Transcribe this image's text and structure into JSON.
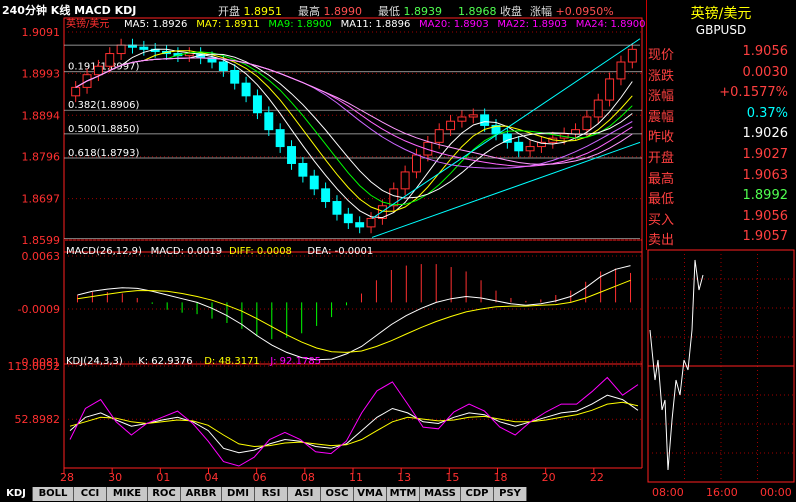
{
  "title": "240分钟 K线 MACD KDJ",
  "ohlc": {
    "open_label": "开盘",
    "open": "1.8951",
    "high_label": "最高",
    "high": "1.8990",
    "low_label": "最低",
    "low": "1.8939",
    "close_label": "收盘",
    "close": "1.8968",
    "chg_label": "涨幅",
    "chg": "+0.0950%"
  },
  "side": {
    "name": "英镑/美元",
    "code": "GBPUSD",
    "rows": [
      {
        "k": "现价",
        "v": "1.9056",
        "c": "#ff4040"
      },
      {
        "k": "涨跌",
        "v": "0.0030",
        "c": "#ff4040"
      },
      {
        "k": "涨幅",
        "v": "+0.1577%",
        "c": "#ff4040"
      },
      {
        "k": "震幅",
        "v": "0.37%",
        "c": "#00ffff"
      },
      {
        "k": "昨收",
        "v": "1.9026",
        "c": "#ffffff"
      },
      {
        "k": "开盘",
        "v": "1.9027",
        "c": "#ff4040"
      },
      {
        "k": "最高",
        "v": "1.9063",
        "c": "#ff4040"
      },
      {
        "k": "最低",
        "v": "1.8992",
        "c": "#50ff50"
      },
      {
        "k": "买入",
        "v": "1.9056",
        "c": "#ff4040"
      },
      {
        "k": "卖出",
        "v": "1.9057",
        "c": "#ff4040"
      }
    ]
  },
  "mini_chart": {
    "xlabels": [
      "08:00",
      "16:00",
      "00:00"
    ]
  },
  "tabs": [
    "KDJ",
    "BOLL",
    "CCI",
    "MIKE",
    "ROC",
    "ARBR",
    "DMI",
    "RSI",
    "ASI",
    "OSC",
    "VMA",
    "MTM",
    "MASS",
    "CDP",
    "PSY"
  ],
  "active_tab": "KDJ",
  "colors": {
    "up": "#ff3030",
    "down": "#00ffff",
    "ma5": "#ffffff",
    "ma7": "#ffff00",
    "ma9": "#ff00ff",
    "ma11": "#00ff00",
    "ma20": "#cc66ff",
    "ma22": "#ff66ff",
    "ma24": "#ff99ff",
    "grid": "#a00000",
    "axis": "#ff2020",
    "channel": "#00ffff"
  },
  "chart_data": [
    {
      "type": "candlestick",
      "name": "英镑/美元",
      "ylim": [
        1.8599,
        1.9091
      ],
      "yticks": [
        "1.9091",
        "1.8993",
        "1.8894",
        "1.8796",
        "1.8697",
        "1.8599"
      ],
      "xticks": [
        "28",
        "30",
        "01",
        "04",
        "06",
        "08",
        "11",
        "13",
        "15",
        "18",
        "20",
        "22"
      ],
      "ma_legend": [
        {
          "label": "MA5: 1.8926",
          "color": "#ffffff"
        },
        {
          "label": "MA7: 1.8911",
          "color": "#ffff00"
        },
        {
          "label": "MA9: 1.8900",
          "color": "#00ff00"
        },
        {
          "label": "MA11: 1.8896",
          "color": "#ffffff"
        },
        {
          "label": "MA20: 1.8903",
          "color": "#ff00ff"
        },
        {
          "label": "MA22: 1.8903",
          "color": "#ff00ff"
        },
        {
          "label": "MA24: 1.8900",
          "color": "#ff00ff"
        }
      ],
      "fib": [
        {
          "label": "0.191(1.8997)",
          "value": 1.8997
        },
        {
          "label": "0.382(1.8906)",
          "value": 1.8906
        },
        {
          "label": "0.500(1.8850)",
          "value": 1.885
        },
        {
          "label": "0.618(1.8793)",
          "value": 1.8793
        }
      ],
      "close_series": [
        1.896,
        1.899,
        1.901,
        1.904,
        1.906,
        1.9055,
        1.905,
        1.9045,
        1.904,
        1.9035,
        1.904,
        1.903,
        1.902,
        1.9,
        1.897,
        1.894,
        1.89,
        1.886,
        1.882,
        1.878,
        1.875,
        1.872,
        1.869,
        1.866,
        1.864,
        1.863,
        1.865,
        1.868,
        1.872,
        1.876,
        1.88,
        1.883,
        1.886,
        1.888,
        1.889,
        1.8895,
        1.887,
        1.885,
        1.883,
        1.881,
        1.882,
        1.883,
        1.884,
        1.885,
        1.886,
        1.889,
        1.893,
        1.898,
        1.902,
        1.905
      ]
    },
    {
      "type": "macd",
      "title": "MACD(26,12,9)",
      "values": {
        "macd": "MACD: 0.0019",
        "diff": "DIFF: 0.0008",
        "dea": "DEA: -0.0001"
      },
      "ylim": [
        -0.0081,
        0.0063
      ],
      "yticks": [
        "0.0063",
        "-0.0009",
        "-0.0081"
      ],
      "diff_series": [
        0.001,
        0.0015,
        0.0018,
        0.002,
        0.0019,
        0.0015,
        0.001,
        0.0005,
        0.0,
        -0.0008,
        -0.0018,
        -0.003,
        -0.0045,
        -0.0058,
        -0.0068,
        -0.0075,
        -0.0078,
        -0.0077,
        -0.007,
        -0.006,
        -0.0045,
        -0.003,
        -0.0018,
        -0.0008,
        0.0,
        0.0005,
        0.0008,
        0.0006,
        0.0002,
        -0.0002,
        -0.0004,
        -0.0002,
        0.0002,
        0.0008,
        0.002,
        0.0035,
        0.0045,
        0.005
      ],
      "dea_series": [
        0.0005,
        0.0008,
        0.0011,
        0.0014,
        0.0016,
        0.0016,
        0.0015,
        0.0012,
        0.0008,
        0.0003,
        -0.0004,
        -0.0012,
        -0.0022,
        -0.0033,
        -0.0044,
        -0.0054,
        -0.0062,
        -0.0067,
        -0.0068,
        -0.0066,
        -0.006,
        -0.0052,
        -0.0043,
        -0.0034,
        -0.0026,
        -0.0019,
        -0.0013,
        -0.0009,
        -0.0006,
        -0.0005,
        -0.0005,
        -0.0004,
        -0.0003,
        0.0,
        0.0006,
        0.0014,
        0.0022,
        0.003
      ]
    },
    {
      "type": "kdj",
      "title": "KDJ(24,3,3)",
      "values": {
        "k": "K: 62.9376",
        "d": "D: 48.3171",
        "j": "J: 92.1785"
      },
      "ylim": [
        0,
        113.0052
      ],
      "yticks": [
        "113.0052",
        "52.8982"
      ],
      "k_series": [
        40,
        55,
        60,
        52,
        45,
        48,
        52,
        55,
        50,
        40,
        20,
        15,
        18,
        25,
        30,
        28,
        22,
        20,
        25,
        40,
        55,
        65,
        60,
        50,
        48,
        55,
        60,
        58,
        50,
        45,
        50,
        55,
        60,
        62,
        70,
        80,
        75,
        63
      ],
      "d_series": [
        45,
        50,
        55,
        54,
        50,
        48,
        50,
        52,
        51,
        46,
        35,
        25,
        22,
        23,
        26,
        27,
        25,
        23,
        24,
        30,
        40,
        50,
        55,
        53,
        51,
        52,
        55,
        56,
        53,
        50,
        50,
        52,
        55,
        58,
        63,
        70,
        72,
        68
      ],
      "j_series": [
        30,
        65,
        75,
        50,
        35,
        48,
        55,
        62,
        48,
        28,
        5,
        0,
        10,
        30,
        38,
        30,
        16,
        14,
        28,
        60,
        85,
        95,
        70,
        44,
        42,
        61,
        70,
        62,
        44,
        35,
        50,
        61,
        70,
        70,
        84,
        100,
        80,
        92
      ]
    }
  ]
}
